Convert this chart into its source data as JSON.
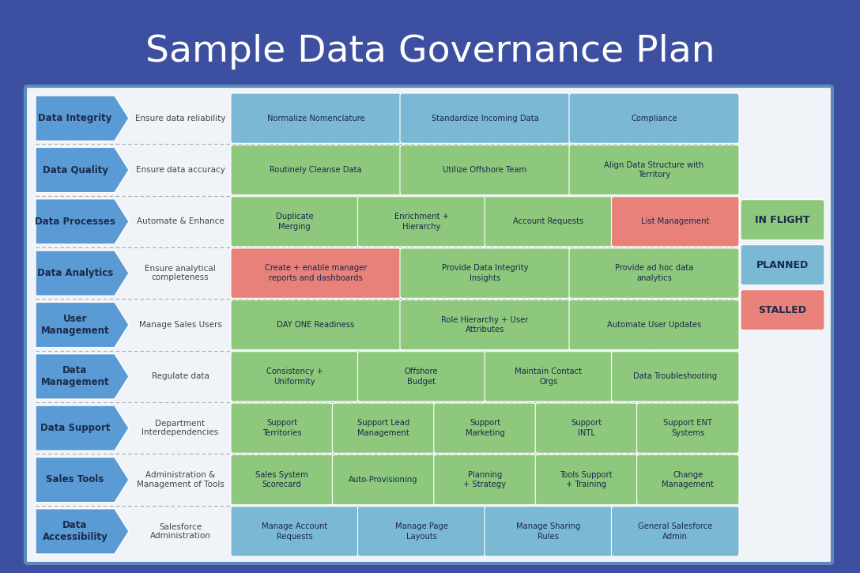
{
  "title": "Sample Data Governance Plan",
  "bg_color": "#3d4fa0",
  "panel_bg": "#f0f4f8",
  "panel_border": "#5b8db8",
  "panel_border2": "#a0b8d0",
  "title_color": "#ffffff",
  "title_fontsize": 34,
  "arrow_color": "#5b9bd5",
  "arrow_text_color": "#1a1a2e",
  "rows": [
    {
      "label": "Data Integrity",
      "subtitle": "Ensure data reliability",
      "items": [
        {
          "text": "Normalize Nomenclature",
          "color": "blue"
        },
        {
          "text": "Standardize Incoming Data",
          "color": "blue"
        },
        {
          "text": "Compliance",
          "color": "blue"
        }
      ]
    },
    {
      "label": "Data Quality",
      "subtitle": "Ensure data accuracy",
      "items": [
        {
          "text": "Routinely Cleanse Data",
          "color": "green"
        },
        {
          "text": "Utilize Offshore Team",
          "color": "green"
        },
        {
          "text": "Align Data Structure with\nTerritory",
          "color": "green"
        }
      ]
    },
    {
      "label": "Data Processes",
      "subtitle": "Automate & Enhance",
      "items": [
        {
          "text": "Duplicate\nMerging",
          "color": "green"
        },
        {
          "text": "Enrichment +\nHierarchy",
          "color": "green"
        },
        {
          "text": "Account Requests",
          "color": "green"
        },
        {
          "text": "List Management",
          "color": "red"
        }
      ]
    },
    {
      "label": "Data Analytics",
      "subtitle": "Ensure analytical\ncompleteness",
      "items": [
        {
          "text": "Create + enable manager\nreports and dashboards",
          "color": "red"
        },
        {
          "text": "Provide Data Integrity\nInsights",
          "color": "green"
        },
        {
          "text": "Provide ad hoc data\nanalytics",
          "color": "green"
        }
      ]
    },
    {
      "label": "User\nManagement",
      "subtitle": "Manage Sales Users",
      "items": [
        {
          "text": "DAY ONE Readiness",
          "color": "green"
        },
        {
          "text": "Role Hierarchy + User\nAttributes",
          "color": "green"
        },
        {
          "text": "Automate User Updates",
          "color": "green"
        }
      ]
    },
    {
      "label": "Data\nManagement",
      "subtitle": "Regulate data",
      "items": [
        {
          "text": "Consistency +\nUniformity",
          "color": "green"
        },
        {
          "text": "Offshore\nBudget",
          "color": "green"
        },
        {
          "text": "Maintain Contact\nOrgs",
          "color": "green"
        },
        {
          "text": "Data Troubleshooting",
          "color": "green"
        }
      ]
    },
    {
      "label": "Data Support",
      "subtitle": "Department\nInterdependencies",
      "items": [
        {
          "text": "Support\nTerritories",
          "color": "green"
        },
        {
          "text": "Support Lead\nManagement",
          "color": "green"
        },
        {
          "text": "Support\nMarketing",
          "color": "green"
        },
        {
          "text": "Support\nINTL",
          "color": "green"
        },
        {
          "text": "Support ENT\nSystems",
          "color": "green"
        }
      ]
    },
    {
      "label": "Sales Tools",
      "subtitle": "Administration &\nManagement of Tools",
      "items": [
        {
          "text": "Sales System\nScorecard",
          "color": "green"
        },
        {
          "text": "Auto-Provisioning",
          "color": "green"
        },
        {
          "text": "Planning\n+ Strategy",
          "color": "green"
        },
        {
          "text": "Tools Support\n+ Training",
          "color": "green"
        },
        {
          "text": "Change\nManagement",
          "color": "green"
        }
      ]
    },
    {
      "label": "Data\nAccessibility",
      "subtitle": "Salesforce\nAdministration",
      "items": [
        {
          "text": "Manage Account\nRequests",
          "color": "blue"
        },
        {
          "text": "Manage Page\nLayouts",
          "color": "blue"
        },
        {
          "text": "Manage Sharing\nRules",
          "color": "blue"
        },
        {
          "text": "General Salesforce\nAdmin",
          "color": "blue"
        }
      ]
    }
  ],
  "legend": [
    {
      "text": "IN FLIGHT",
      "color": "green"
    },
    {
      "text": "PLANNED",
      "color": "blue"
    },
    {
      "text": "STALLED",
      "color": "red"
    }
  ],
  "color_map": {
    "green": "#8dc87c",
    "blue": "#7bb8d4",
    "red": "#e8817a"
  },
  "box_text_color": "#1a2a4a",
  "subtitle_color": "#444444"
}
